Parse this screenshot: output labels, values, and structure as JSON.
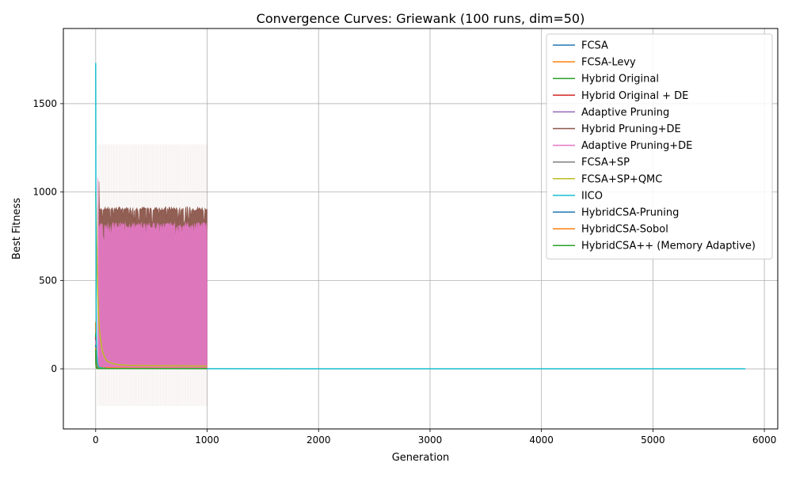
{
  "chart_data": {
    "type": "line",
    "title": "Convergence Curves: Griewank (100 runs, dim=50)",
    "xlabel": "Generation",
    "ylabel": "Best Fitness",
    "xlim": [
      -290,
      6120
    ],
    "ylim": [
      -340,
      1925
    ],
    "xticks": [
      0,
      1000,
      2000,
      3000,
      4000,
      5000,
      6000
    ],
    "yticks": [
      0,
      500,
      1000,
      1500
    ],
    "grid": true,
    "legend_position": "top-right",
    "series": [
      {
        "name": "FCSA",
        "color": "#1f77b4",
        "x": [
          0,
          3,
          6,
          10,
          20,
          50,
          100,
          300,
          600,
          1000
        ],
        "y": [
          260,
          60,
          25,
          12,
          6,
          4,
          3,
          2,
          1.5,
          1.2
        ]
      },
      {
        "name": "FCSA-Levy",
        "color": "#ff7f0e",
        "x": [
          0,
          3,
          6,
          10,
          20,
          50,
          100,
          300,
          600,
          1000
        ],
        "y": [
          265,
          120,
          50,
          25,
          12,
          8,
          6,
          4,
          3,
          2.5
        ]
      },
      {
        "name": "Hybrid Original",
        "color": "#2ca02c",
        "x": [
          0,
          3,
          6,
          10,
          20,
          50,
          100,
          300,
          600,
          1000
        ],
        "y": [
          200,
          40,
          15,
          8,
          5,
          3,
          2,
          1.5,
          1,
          1
        ]
      },
      {
        "name": "Hybrid Original + DE",
        "color": "#d62728",
        "x": [
          0,
          3,
          6,
          10,
          20,
          50,
          100,
          300,
          600,
          1000
        ],
        "y": [
          180,
          30,
          12,
          6,
          3,
          2,
          1.5,
          1,
          1,
          1
        ]
      },
      {
        "name": "Adaptive Pruning",
        "color": "#9467bd",
        "x": [
          0,
          3,
          6,
          10,
          20,
          50,
          100,
          300,
          600,
          1000
        ],
        "y": [
          150,
          25,
          10,
          5,
          3,
          2,
          1.5,
          1,
          1,
          1
        ]
      },
      {
        "name": "Hybrid Pruning+DE",
        "color": "#8c564b",
        "x": [
          0,
          3,
          6,
          10,
          20,
          50,
          100,
          300,
          600,
          1000
        ],
        "y": [
          170,
          30,
          12,
          6,
          3,
          2,
          1.5,
          1,
          1,
          1
        ]
      },
      {
        "name": "Adaptive Pruning+DE",
        "color": "#e377c2",
        "x": [
          0,
          3,
          6,
          10,
          20,
          50,
          100,
          300,
          600,
          1000
        ],
        "y": [
          160,
          28,
          11,
          5,
          3,
          2,
          1.5,
          1,
          1,
          1
        ]
      },
      {
        "name": "FCSA+SP",
        "color": "#7f7f7f",
        "x": [
          0,
          3,
          6,
          10,
          20,
          50,
          100,
          300,
          600,
          1000
        ],
        "y": [
          140,
          22,
          9,
          5,
          3,
          2,
          1.5,
          1,
          1,
          1
        ]
      },
      {
        "name": "FCSA+SP+QMC",
        "color": "#bcbd22",
        "x": [
          0,
          5,
          10,
          15,
          20,
          30,
          40,
          60,
          80,
          100,
          150,
          200,
          300,
          500,
          700,
          1000
        ],
        "y": [
          1000,
          900,
          700,
          520,
          400,
          260,
          180,
          100,
          65,
          45,
          30,
          24,
          20,
          18,
          17,
          16
        ]
      },
      {
        "name": "IICO",
        "color": "#17becf",
        "x": [
          0,
          2,
          4,
          6,
          10,
          15,
          20,
          30,
          50,
          100,
          300,
          1000,
          3000,
          5830
        ],
        "y": [
          1730,
          900,
          420,
          200,
          80,
          40,
          20,
          10,
          5,
          2,
          1,
          0.5,
          0.2,
          0.1
        ]
      },
      {
        "name": "HybridCSA-Pruning",
        "color": "#1f77b4",
        "x": [
          0,
          3,
          6,
          10,
          20,
          50,
          100,
          300,
          600,
          1000
        ],
        "y": [
          130,
          20,
          8,
          4,
          2,
          1.5,
          1,
          1,
          1,
          1
        ]
      },
      {
        "name": "HybridCSA-Sobol",
        "color": "#ff7f0e",
        "x": [
          0,
          3,
          6,
          10,
          20,
          50,
          100,
          300,
          600,
          1000
        ],
        "y": [
          120,
          18,
          7,
          4,
          2,
          1.5,
          1,
          1,
          1,
          1
        ]
      },
      {
        "name": "HybridCSA++ (Memory Adaptive)",
        "color": "#2ca02c",
        "x": [
          0,
          3,
          6,
          10,
          20,
          50,
          100,
          300,
          600,
          1000
        ],
        "y": [
          110,
          16,
          6,
          3,
          2,
          1.5,
          1,
          1,
          1,
          1
        ]
      }
    ],
    "bands": [
      {
        "series": "Hybrid Pruning+DE",
        "color": "#8c564b",
        "x_range": [
          30,
          1000
        ],
        "upper_mean": 905,
        "upper_jitter": 12,
        "first_peak": 1060
      },
      {
        "series": "Adaptive Pruning+DE",
        "color": "#e377c2",
        "x_range": [
          20,
          1000
        ],
        "upper_mean": 810,
        "upper_jitter": 20,
        "first_peak": 1080
      }
    ]
  }
}
